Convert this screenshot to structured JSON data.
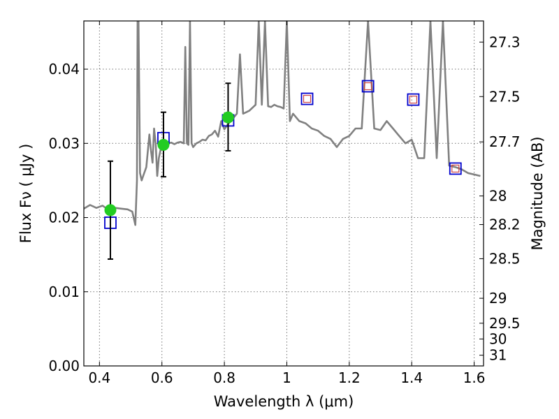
{
  "chart_data": {
    "type": "scatter",
    "xlabel": "Wavelength  λ (μm)",
    "ylabel": "Flux  Fν  ( μJy )",
    "ylabel_right": "Magnitude (AB)",
    "xlim": [
      0.35,
      1.63
    ],
    "ylim": [
      0.0,
      0.0465
    ],
    "grid": true,
    "x_ticks": [
      {
        "value": 0.4,
        "label": "0.4"
      },
      {
        "value": 0.6,
        "label": "0.6"
      },
      {
        "value": 0.8,
        "label": "0.8"
      },
      {
        "value": 1.0,
        "label": "1"
      },
      {
        "value": 1.2,
        "label": "1.2"
      },
      {
        "value": 1.4,
        "label": "1.4"
      },
      {
        "value": 1.6,
        "label": "1.6"
      }
    ],
    "y_ticks": [
      {
        "value": 0.0,
        "label": "0.00"
      },
      {
        "value": 0.01,
        "label": "0.01"
      },
      {
        "value": 0.02,
        "label": "0.02"
      },
      {
        "value": 0.03,
        "label": "0.03"
      },
      {
        "value": 0.04,
        "label": "0.04"
      }
    ],
    "mag_ticks": [
      {
        "value": 27.3,
        "label": "27.3"
      },
      {
        "value": 27.5,
        "label": "27.5"
      },
      {
        "value": 27.7,
        "label": "27.7"
      },
      {
        "value": 28,
        "label": "28"
      },
      {
        "value": 28.2,
        "label": "28.2"
      },
      {
        "value": 28.5,
        "label": "28.5"
      },
      {
        "value": 29,
        "label": "29"
      },
      {
        "value": 29.5,
        "label": "29.5"
      },
      {
        "value": 30,
        "label": "30"
      },
      {
        "value": 31,
        "label": "31"
      }
    ],
    "series": [
      {
        "kind": "spectrum_line",
        "color": "#808080",
        "x": [
          0.35,
          0.37,
          0.39,
          0.41,
          0.43,
          0.45,
          0.47,
          0.49,
          0.505,
          0.515,
          0.52,
          0.522,
          0.525,
          0.53,
          0.535,
          0.54,
          0.55,
          0.56,
          0.565,
          0.57,
          0.575,
          0.58,
          0.585,
          0.59,
          0.6,
          0.61,
          0.62,
          0.63,
          0.64,
          0.65,
          0.66,
          0.67,
          0.675,
          0.68,
          0.685,
          0.69,
          0.695,
          0.7,
          0.71,
          0.72,
          0.73,
          0.74,
          0.75,
          0.76,
          0.77,
          0.78,
          0.79,
          0.8,
          0.81,
          0.82,
          0.83,
          0.84,
          0.85,
          0.86,
          0.87,
          0.88,
          0.89,
          0.9,
          0.91,
          0.92,
          0.93,
          0.94,
          0.95,
          0.96,
          0.97,
          0.98,
          0.99,
          1.0,
          1.01,
          1.02,
          1.04,
          1.06,
          1.08,
          1.1,
          1.12,
          1.14,
          1.16,
          1.18,
          1.2,
          1.22,
          1.24,
          1.26,
          1.28,
          1.3,
          1.32,
          1.34,
          1.36,
          1.38,
          1.4,
          1.42,
          1.44,
          1.46,
          1.48,
          1.5,
          1.52,
          1.54,
          1.56,
          1.58,
          1.6,
          1.62
        ],
        "y": [
          0.0212,
          0.0217,
          0.0213,
          0.0216,
          0.021,
          0.0213,
          0.0212,
          0.0211,
          0.0208,
          0.019,
          0.025,
          0.047,
          0.047,
          0.026,
          0.025,
          0.0256,
          0.0268,
          0.0312,
          0.029,
          0.0274,
          0.032,
          0.03,
          0.0256,
          0.028,
          0.03,
          0.0304,
          0.03,
          0.0301,
          0.0299,
          0.0301,
          0.0302,
          0.03,
          0.043,
          0.03,
          0.0298,
          0.047,
          0.03,
          0.0295,
          0.03,
          0.0302,
          0.0305,
          0.0304,
          0.031,
          0.0312,
          0.0317,
          0.0309,
          0.033,
          0.0319,
          0.0325,
          0.033,
          0.0335,
          0.034,
          0.042,
          0.034,
          0.0342,
          0.0344,
          0.0348,
          0.0352,
          0.047,
          0.0352,
          0.047,
          0.035,
          0.0349,
          0.0352,
          0.035,
          0.0349,
          0.0347,
          0.047,
          0.033,
          0.034,
          0.033,
          0.0327,
          0.032,
          0.0317,
          0.031,
          0.0306,
          0.0295,
          0.0306,
          0.031,
          0.032,
          0.032,
          0.047,
          0.032,
          0.0318,
          0.033,
          0.032,
          0.031,
          0.03,
          0.0305,
          0.028,
          0.028,
          0.047,
          0.028,
          0.047,
          0.027,
          0.0268,
          0.0265,
          0.026,
          0.0258,
          0.0256
        ]
      },
      {
        "kind": "model_squares",
        "color": "#0000cc",
        "points": [
          {
            "x": 0.435,
            "y": 0.0193
          },
          {
            "x": 0.605,
            "y": 0.0307
          },
          {
            "x": 0.812,
            "y": 0.0331
          },
          {
            "x": 1.065,
            "y": 0.036
          },
          {
            "x": 1.26,
            "y": 0.0377
          },
          {
            "x": 1.405,
            "y": 0.0359
          },
          {
            "x": 1.54,
            "y": 0.0266
          }
        ]
      },
      {
        "kind": "inner_squares",
        "color": "#cc4444",
        "points": [
          {
            "x": 1.065,
            "y": 0.036
          },
          {
            "x": 1.26,
            "y": 0.0377
          },
          {
            "x": 1.405,
            "y": 0.0359
          },
          {
            "x": 1.54,
            "y": 0.0266
          }
        ]
      },
      {
        "kind": "observed_points",
        "color": "#22cc22",
        "points": [
          {
            "x": 0.435,
            "y": 0.021,
            "ylow": 0.0144,
            "yhigh": 0.0276
          },
          {
            "x": 0.605,
            "y": 0.0298,
            "ylow": 0.0255,
            "yhigh": 0.0342
          },
          {
            "x": 0.812,
            "y": 0.0335,
            "ylow": 0.029,
            "yhigh": 0.0381
          }
        ]
      }
    ]
  }
}
